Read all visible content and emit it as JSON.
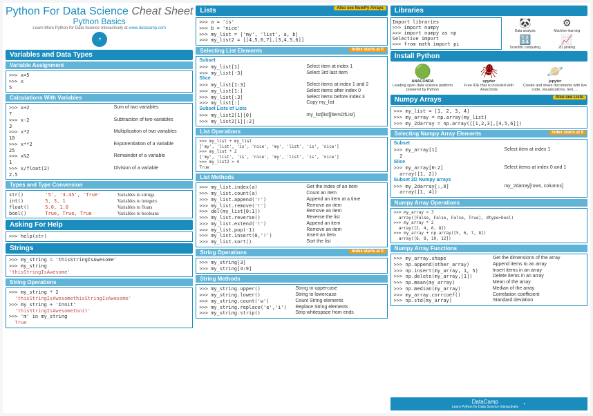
{
  "header": {
    "title_main": "Python For Data Science",
    "title_em": "Cheat Sheet",
    "subtitle": "Python Basics",
    "learn_prefix": "Learn More Python for Data Science Interactively at ",
    "learn_link": "www.datacamp.com"
  },
  "col1": {
    "vars_types_head": "Variables and Data Types",
    "var_assign_head": "Variable Assignment",
    "var_assign_code": ">>> x=5\n>>> x\n5",
    "calc_head": "Calculations With Variables",
    "calc": [
      {
        "c": ">>> x+2\n7",
        "d": "Sum of two variables"
      },
      {
        "c": ">>> x-2\n3",
        "d": "Subtraction of two variables"
      },
      {
        "c": ">>> x*2\n10",
        "d": "Multiplication of two variables"
      },
      {
        "c": ">>> x**2\n25",
        "d": "Exponentiation of a variable"
      },
      {
        "c": ">>> x%2\n1",
        "d": "Remainder of a variable"
      },
      {
        "c": ">>> x/float(2)\n2.5",
        "d": "Division of a variable"
      }
    ],
    "types_head": "Types and Type Conversion",
    "types": [
      {
        "fn": "str()",
        "ex": "'5', '3.45', 'True'",
        "d": "Variables to strings"
      },
      {
        "fn": "int()",
        "ex": "5, 3, 1",
        "d": "Variables to integers"
      },
      {
        "fn": "float()",
        "ex": "5.0, 1.0",
        "d": "Variables to floats"
      },
      {
        "fn": "bool()",
        "ex": "True, True, True",
        "d": "Variables to booleans"
      }
    ],
    "help_head": "Asking For Help",
    "help_code": ">>> help(str)",
    "strings_head": "Strings",
    "strings_code": ">>> my_string = 'thisStringIsAwesome'\n>>> my_string",
    "strings_out": "'thisStringIsAwesome'",
    "strops_head": "String Operations",
    "strops_code1": ">>> my_string * 2",
    "strops_out1": "  'thisStringIsAwesomethisStringIsAwesome'",
    "strops_code2": ">>> my_string + 'Innit'",
    "strops_out2": "  'thisStringIsAwesomeInnit'",
    "strops_code3": ">>> 'm' in my_string",
    "strops_out3": "  True"
  },
  "col2": {
    "lists_head": "Lists",
    "lists_badge": "Also see NumPy Arrays",
    "lists_code": ">>> a = 'is'\n>>> b = 'nice'\n>>> my_list = ['my', 'list', a, b]\n>>> my_list2 = [[4,5,6,7],[3,4,5,6]]",
    "sel_head": "Selecting List Elements",
    "idx_badge": "Index starts at 0",
    "sel_subset": "Subset",
    "sel1": [
      {
        "c": ">>> my_list[1]",
        "d": "Select item at index 1"
      },
      {
        "c": ">>> my_list[-3]",
        "d": "Select 3rd last item"
      }
    ],
    "sel_slice": "Slice",
    "sel2": [
      {
        "c": ">>> my_list[1:3]",
        "d": "Select items at index 1 and 2"
      },
      {
        "c": ">>> my_list[1:]",
        "d": "Select items after index 0"
      },
      {
        "c": ">>> my_list[:3]",
        "d": "Select items before index 3"
      },
      {
        "c": ">>> my_list[:]",
        "d": "Copy my_list"
      }
    ],
    "sel_sub2d": "Subset Lists of Lists",
    "sel3": [
      {
        "c": ">>> my_list2[1][0]",
        "d": "my_list[list][itemOfList]"
      },
      {
        "c": ">>> my_list2[1][:2]",
        "d": ""
      }
    ],
    "listops_head": "List Operations",
    "listops_code": ">>> my_list + my_list\n['my', 'list', 'is', 'nice', 'my', 'list', 'is', 'nice']\n>>> my_list * 2\n['my', 'list', 'is', 'nice', 'my', 'list', 'is', 'nice']\n>>> my_list2 > 4\nTrue",
    "listmeth_head": "List Methods",
    "listmeth": [
      {
        "c": ">>> my_list.index(a)",
        "d": "Get the index of an item"
      },
      {
        "c": ">>> my_list.count(a)",
        "d": "Count an item"
      },
      {
        "c": ">>> my_list.append('!')",
        "d": "Append an item at a time"
      },
      {
        "c": ">>> my_list.remove('!')",
        "d": "Remove an item"
      },
      {
        "c": ">>> del(my_list[0:1])",
        "d": "Remove an item"
      },
      {
        "c": ">>> my_list.reverse()",
        "d": "Reverse the list"
      },
      {
        "c": ">>> my_list.extend('!')",
        "d": "Append an item"
      },
      {
        "c": ">>> my_list.pop(-1)",
        "d": "Remove an item"
      },
      {
        "c": ">>> my_list.insert(0,'!')",
        "d": "Insert an item"
      },
      {
        "c": ">>> my_list.sort()",
        "d": "Sort the list"
      }
    ],
    "strops2_head": "String Operations",
    "strops2_code": ">>> my_string[3]\n>>> my_string[4:9]",
    "strmeth_head": "String Methods",
    "strmeth": [
      {
        "c": ">>> my_string.upper()",
        "d": "String to uppercase"
      },
      {
        "c": ">>> my_string.lower()",
        "d": "String to lowercase"
      },
      {
        "c": ">>> my_string.count('w')",
        "d": "Count String elements"
      },
      {
        "c": ">>> my_string.replace('e','i')",
        "d": "Replace String elements"
      },
      {
        "c": ">>> my_string.strip()",
        "d": "Strip whitespace from ends"
      }
    ]
  },
  "col3": {
    "lib_head": "Libraries",
    "lib_import": "Import libraries",
    "lib_code1": ">>> import numpy\n>>> import numpy as np",
    "lib_sel": "Selective import",
    "lib_code2": ">>> from math import pi",
    "logos": [
      {
        "icon": "🐼",
        "label": "Data analysis",
        "name": "pandas"
      },
      {
        "icon": "⚙",
        "label": "Machine learning",
        "name": "sklearn"
      },
      {
        "icon": "🔢",
        "label": "Scientific computing",
        "name": "NumPy"
      },
      {
        "icon": "📈",
        "label": "2D plotting",
        "name": "matplotlib"
      }
    ],
    "install_head": "Install Python",
    "install": [
      {
        "icon": "🟢",
        "title": "ANACONDA",
        "desc": "Leading open data science platform powered by Python",
        "color": "#3eb049"
      },
      {
        "icon": "🕷",
        "title": "spyder",
        "desc": "Free IDE that is included with Anaconda",
        "color": "#8b0000"
      },
      {
        "icon": "🪐",
        "title": "jupyter",
        "desc": "Create and share documents with live code, visualizations, text, ...",
        "color": "#f37626"
      }
    ],
    "np_head": "Numpy Arrays",
    "np_badge": "Also see Lists",
    "np_code": ">>> my_list = [1, 2, 3, 4]\n>>> my_array = np.array(my_list)\n>>> my_2darray = np.array([[1,2,3],[4,5,6]])",
    "npsel_head": "Selecting Numpy Array Elements",
    "npsel_subset": "Subset",
    "npsel1": [
      {
        "c": ">>> my_array[1]\n  2",
        "d": "Select item at index 1"
      }
    ],
    "npsel_slice": "Slice",
    "npsel2": [
      {
        "c": ">>> my_array[0:2]\n  array([1, 2])",
        "d": "Select items at index 0 and 1"
      }
    ],
    "npsel_2d": "Subset 2D Numpy arrays",
    "npsel3": [
      {
        "c": ">>> my_2darray[:,0]\n  array([1, 4])",
        "d": "my_2darray[rows, columns]"
      }
    ],
    "npops_head": "Numpy Array Operations",
    "npops_code": ">>> my_array > 3\n  array([False, False, False, True], dtype=bool)\n>>> my_array * 2\n  array([2, 4, 6, 8])\n>>> my_array + np.array([5, 6, 7, 8])\n  array([6, 8, 10, 12])",
    "npfn_head": "Numpy Array Functions",
    "npfn": [
      {
        "c": ">>> my_array.shape",
        "d": "Get the dimensions of the array"
      },
      {
        "c": ">>> np.append(other_array)",
        "d": "Append items to an array"
      },
      {
        "c": ">>> np.insert(my_array, 1, 5)",
        "d": "Insert items in an array"
      },
      {
        "c": ">>> np.delete(my_array,[1])",
        "d": "Delete items in an array"
      },
      {
        "c": ">>> np.mean(my_array)",
        "d": "Mean of the array"
      },
      {
        "c": ">>> np.median(my_array)",
        "d": "Median of the array"
      },
      {
        "c": ">>> my_array.corrcoef()",
        "d": "Correlation coefficient"
      },
      {
        "c": ">>> np.std(my_array)",
        "d": "Standard deviation"
      }
    ],
    "footer_title": "DataCamp",
    "footer_sub": "Learn Python for Data Science Interactively"
  }
}
